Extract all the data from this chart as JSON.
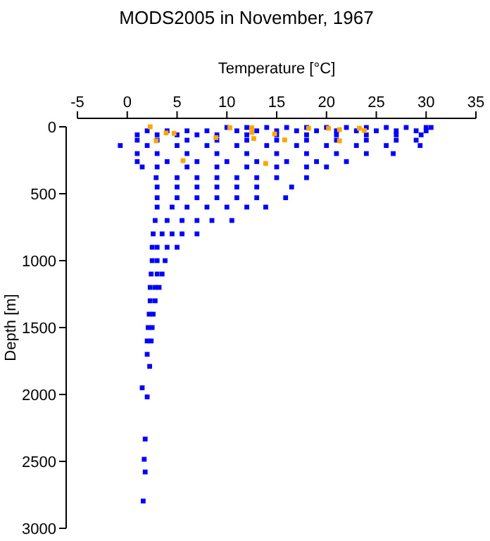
{
  "chart_data": {
    "type": "scatter",
    "title": "MODS2005 in November, 1967",
    "xlabel": "Temperature [°C]",
    "ylabel": "Depth [m]",
    "xlim": [
      -5,
      35
    ],
    "ylim": [
      3000,
      0
    ],
    "xticks": [
      -5,
      0,
      5,
      10,
      15,
      20,
      25,
      30,
      35
    ],
    "yticks": [
      0,
      500,
      1000,
      1500,
      2000,
      2500,
      3000
    ],
    "grid": false,
    "marker": "square",
    "series": [
      {
        "color": "#0000ff",
        "x": [
          10,
          12,
          14,
          16,
          18,
          20,
          22,
          24,
          26,
          28,
          30,
          30.5,
          2,
          4,
          6,
          8,
          11,
          13,
          15,
          17,
          19,
          21,
          23,
          25,
          27,
          29,
          30,
          1,
          3,
          5,
          7,
          9,
          12,
          15,
          18,
          21,
          24,
          27,
          29.5,
          1,
          3,
          6,
          9,
          12,
          15,
          18,
          21,
          24,
          27,
          29,
          -0.7,
          2,
          5,
          8,
          11,
          14,
          17,
          20,
          23,
          26,
          29.4,
          1,
          3,
          6,
          9,
          12,
          15,
          18,
          21,
          24,
          26.7,
          1,
          4,
          7,
          10,
          13,
          16,
          19,
          22,
          1.5,
          3,
          6,
          9,
          12,
          15,
          18,
          20,
          2.9,
          5,
          7,
          9,
          11,
          13,
          15,
          18,
          3,
          5,
          7,
          9,
          11,
          13,
          16.5,
          3,
          5,
          7,
          9,
          11,
          13,
          15.9,
          3,
          4.5,
          6,
          8,
          10,
          12,
          13.9,
          2.8,
          4,
          5.5,
          7,
          8.5,
          10.5,
          2.6,
          3.5,
          4.5,
          5.5,
          7,
          2.5,
          3,
          4,
          5,
          2.5,
          3,
          3.8,
          2.4,
          3,
          3.5,
          2.3,
          2.8,
          3.2,
          2.3,
          2.8,
          2.2,
          2.6,
          2.1,
          2.5,
          2,
          2.4,
          2,
          2.25,
          1.5,
          2,
          1.8,
          1.7,
          1.8,
          1.6
        ],
        "values": [
          5,
          5,
          5,
          5,
          5,
          5,
          5,
          5,
          5,
          5,
          5,
          5,
          30,
          30,
          30,
          30,
          30,
          30,
          30,
          30,
          30,
          30,
          30,
          30,
          30,
          30,
          30,
          60,
          60,
          60,
          60,
          60,
          60,
          60,
          60,
          60,
          60,
          60,
          60,
          100,
          100,
          100,
          100,
          100,
          100,
          100,
          100,
          100,
          100,
          100,
          140,
          140,
          140,
          140,
          140,
          140,
          140,
          140,
          140,
          140,
          140,
          200,
          200,
          200,
          200,
          200,
          200,
          200,
          200,
          200,
          200,
          260,
          260,
          260,
          260,
          260,
          260,
          260,
          260,
          300,
          300,
          300,
          300,
          300,
          300,
          300,
          300,
          380,
          380,
          380,
          380,
          380,
          380,
          380,
          380,
          450,
          450,
          450,
          450,
          450,
          450,
          450,
          530,
          530,
          530,
          530,
          530,
          530,
          530,
          600,
          600,
          600,
          600,
          600,
          600,
          600,
          700,
          700,
          700,
          700,
          700,
          700,
          800,
          800,
          800,
          800,
          800,
          900,
          900,
          900,
          900,
          1000,
          1000,
          1000,
          1100,
          1100,
          1100,
          1200,
          1200,
          1200,
          1300,
          1300,
          1400,
          1400,
          1500,
          1500,
          1600,
          1600,
          1700,
          1790,
          1950,
          2018,
          2333,
          2484,
          2579,
          2796
        ]
      },
      {
        "color": "#ffa500",
        "x": [
          2.3,
          3.9,
          2.9,
          4.7,
          5.6,
          8.9,
          10.3,
          12.5,
          12.5,
          12.7,
          14.8,
          15.8,
          13.9,
          18.2,
          20.2,
          21.3,
          21.3,
          23.3,
          23.8
        ],
        "values": [
          0,
          46,
          105,
          49,
          253,
          81,
          7,
          7,
          42,
          88,
          53,
          98,
          274,
          11,
          11,
          21,
          105,
          11,
          28
        ]
      }
    ]
  }
}
